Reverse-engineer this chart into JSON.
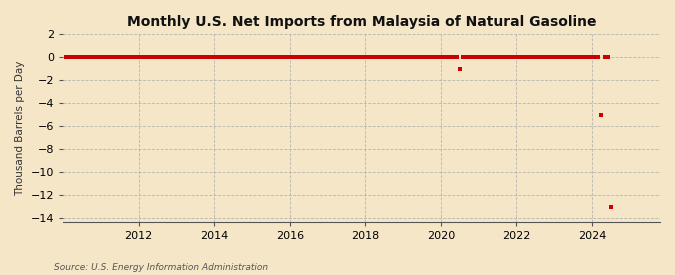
{
  "title": "Monthly U.S. Net Imports from Malaysia of Natural Gasoline",
  "ylabel": "Thousand Barrels per Day",
  "source": "Source: U.S. Energy Information Administration",
  "background_color": "#f5e6c8",
  "plot_background_color": "#f5e6c8",
  "xlim": [
    2010.0,
    2025.8
  ],
  "ylim": [
    -14,
    2
  ],
  "yticks": [
    2,
    0,
    -2,
    -4,
    -6,
    -8,
    -10,
    -12,
    -14
  ],
  "xticks": [
    2012,
    2014,
    2016,
    2018,
    2020,
    2022,
    2024
  ],
  "grid_color": "#aaaaaa",
  "marker_color": "#cc0000",
  "data_points": [
    [
      2010.083,
      0
    ],
    [
      2010.167,
      0
    ],
    [
      2010.25,
      0
    ],
    [
      2010.333,
      0
    ],
    [
      2010.417,
      0
    ],
    [
      2010.5,
      0
    ],
    [
      2010.583,
      0
    ],
    [
      2010.667,
      0
    ],
    [
      2010.75,
      0
    ],
    [
      2010.833,
      0
    ],
    [
      2010.917,
      0
    ],
    [
      2011.0,
      0
    ],
    [
      2011.083,
      0
    ],
    [
      2011.167,
      0
    ],
    [
      2011.25,
      0
    ],
    [
      2011.333,
      0
    ],
    [
      2011.417,
      0
    ],
    [
      2011.5,
      0
    ],
    [
      2011.583,
      0
    ],
    [
      2011.667,
      0
    ],
    [
      2011.75,
      0
    ],
    [
      2011.833,
      0
    ],
    [
      2011.917,
      0
    ],
    [
      2012.0,
      0
    ],
    [
      2012.083,
      0
    ],
    [
      2012.167,
      0
    ],
    [
      2012.25,
      0
    ],
    [
      2012.333,
      0
    ],
    [
      2012.417,
      0
    ],
    [
      2012.5,
      0
    ],
    [
      2012.583,
      0
    ],
    [
      2012.667,
      0
    ],
    [
      2012.75,
      0
    ],
    [
      2012.833,
      0
    ],
    [
      2012.917,
      0
    ],
    [
      2013.0,
      0
    ],
    [
      2013.083,
      0
    ],
    [
      2013.167,
      0
    ],
    [
      2013.25,
      0
    ],
    [
      2013.333,
      0
    ],
    [
      2013.417,
      0
    ],
    [
      2013.5,
      0
    ],
    [
      2013.583,
      0
    ],
    [
      2013.667,
      0
    ],
    [
      2013.75,
      0
    ],
    [
      2013.833,
      0
    ],
    [
      2013.917,
      0
    ],
    [
      2014.0,
      0
    ],
    [
      2014.083,
      0
    ],
    [
      2014.167,
      0
    ],
    [
      2014.25,
      0
    ],
    [
      2014.333,
      0
    ],
    [
      2014.417,
      0
    ],
    [
      2014.5,
      0
    ],
    [
      2014.583,
      0
    ],
    [
      2014.667,
      0
    ],
    [
      2014.75,
      0
    ],
    [
      2014.833,
      0
    ],
    [
      2014.917,
      0
    ],
    [
      2015.0,
      0
    ],
    [
      2015.083,
      0
    ],
    [
      2015.167,
      0
    ],
    [
      2015.25,
      0
    ],
    [
      2015.333,
      0
    ],
    [
      2015.417,
      0
    ],
    [
      2015.5,
      0
    ],
    [
      2015.583,
      0
    ],
    [
      2015.667,
      0
    ],
    [
      2015.75,
      0
    ],
    [
      2015.833,
      0
    ],
    [
      2015.917,
      0
    ],
    [
      2016.0,
      0
    ],
    [
      2016.083,
      0
    ],
    [
      2016.167,
      0
    ],
    [
      2016.25,
      0
    ],
    [
      2016.333,
      0
    ],
    [
      2016.417,
      0
    ],
    [
      2016.5,
      0
    ],
    [
      2016.583,
      0
    ],
    [
      2016.667,
      0
    ],
    [
      2016.75,
      0
    ],
    [
      2016.833,
      0
    ],
    [
      2016.917,
      0
    ],
    [
      2017.0,
      0
    ],
    [
      2017.083,
      0
    ],
    [
      2017.167,
      0
    ],
    [
      2017.25,
      0
    ],
    [
      2017.333,
      0
    ],
    [
      2017.417,
      0
    ],
    [
      2017.5,
      0
    ],
    [
      2017.583,
      0
    ],
    [
      2017.667,
      0
    ],
    [
      2017.75,
      0
    ],
    [
      2017.833,
      0
    ],
    [
      2017.917,
      0
    ],
    [
      2018.0,
      0
    ],
    [
      2018.083,
      0
    ],
    [
      2018.167,
      0
    ],
    [
      2018.25,
      0
    ],
    [
      2018.333,
      0
    ],
    [
      2018.417,
      0
    ],
    [
      2018.5,
      0
    ],
    [
      2018.583,
      0
    ],
    [
      2018.667,
      0
    ],
    [
      2018.75,
      0
    ],
    [
      2018.833,
      0
    ],
    [
      2018.917,
      0
    ],
    [
      2019.0,
      0
    ],
    [
      2019.083,
      0
    ],
    [
      2019.167,
      0
    ],
    [
      2019.25,
      0
    ],
    [
      2019.333,
      0
    ],
    [
      2019.417,
      0
    ],
    [
      2019.5,
      0
    ],
    [
      2019.583,
      0
    ],
    [
      2019.667,
      0
    ],
    [
      2019.75,
      0
    ],
    [
      2019.833,
      0
    ],
    [
      2019.917,
      0
    ],
    [
      2020.0,
      0
    ],
    [
      2020.083,
      0
    ],
    [
      2020.167,
      0
    ],
    [
      2020.25,
      0
    ],
    [
      2020.333,
      0
    ],
    [
      2020.417,
      0
    ],
    [
      2020.5,
      -1.0
    ],
    [
      2020.583,
      0
    ],
    [
      2020.667,
      0
    ],
    [
      2020.75,
      0
    ],
    [
      2020.833,
      0
    ],
    [
      2020.917,
      0
    ],
    [
      2021.0,
      0
    ],
    [
      2021.083,
      0
    ],
    [
      2021.167,
      0
    ],
    [
      2021.25,
      0
    ],
    [
      2021.333,
      0
    ],
    [
      2021.417,
      0
    ],
    [
      2021.5,
      0
    ],
    [
      2021.583,
      0
    ],
    [
      2021.667,
      0
    ],
    [
      2021.75,
      0
    ],
    [
      2021.833,
      0
    ],
    [
      2021.917,
      0
    ],
    [
      2022.0,
      0
    ],
    [
      2022.083,
      0
    ],
    [
      2022.167,
      0
    ],
    [
      2022.25,
      0
    ],
    [
      2022.333,
      0
    ],
    [
      2022.417,
      0
    ],
    [
      2022.5,
      0
    ],
    [
      2022.583,
      0
    ],
    [
      2022.667,
      0
    ],
    [
      2022.75,
      0
    ],
    [
      2022.833,
      0
    ],
    [
      2022.917,
      0
    ],
    [
      2023.0,
      0
    ],
    [
      2023.083,
      0
    ],
    [
      2023.167,
      0
    ],
    [
      2023.25,
      0
    ],
    [
      2023.333,
      0
    ],
    [
      2023.417,
      0
    ],
    [
      2023.5,
      0
    ],
    [
      2023.583,
      0
    ],
    [
      2023.667,
      0
    ],
    [
      2023.75,
      0
    ],
    [
      2023.833,
      0
    ],
    [
      2023.917,
      0
    ],
    [
      2024.0,
      0
    ],
    [
      2024.083,
      0
    ],
    [
      2024.167,
      0
    ],
    [
      2024.25,
      -5.0
    ],
    [
      2024.333,
      0
    ],
    [
      2024.417,
      0
    ],
    [
      2024.5,
      -13.0
    ]
  ]
}
